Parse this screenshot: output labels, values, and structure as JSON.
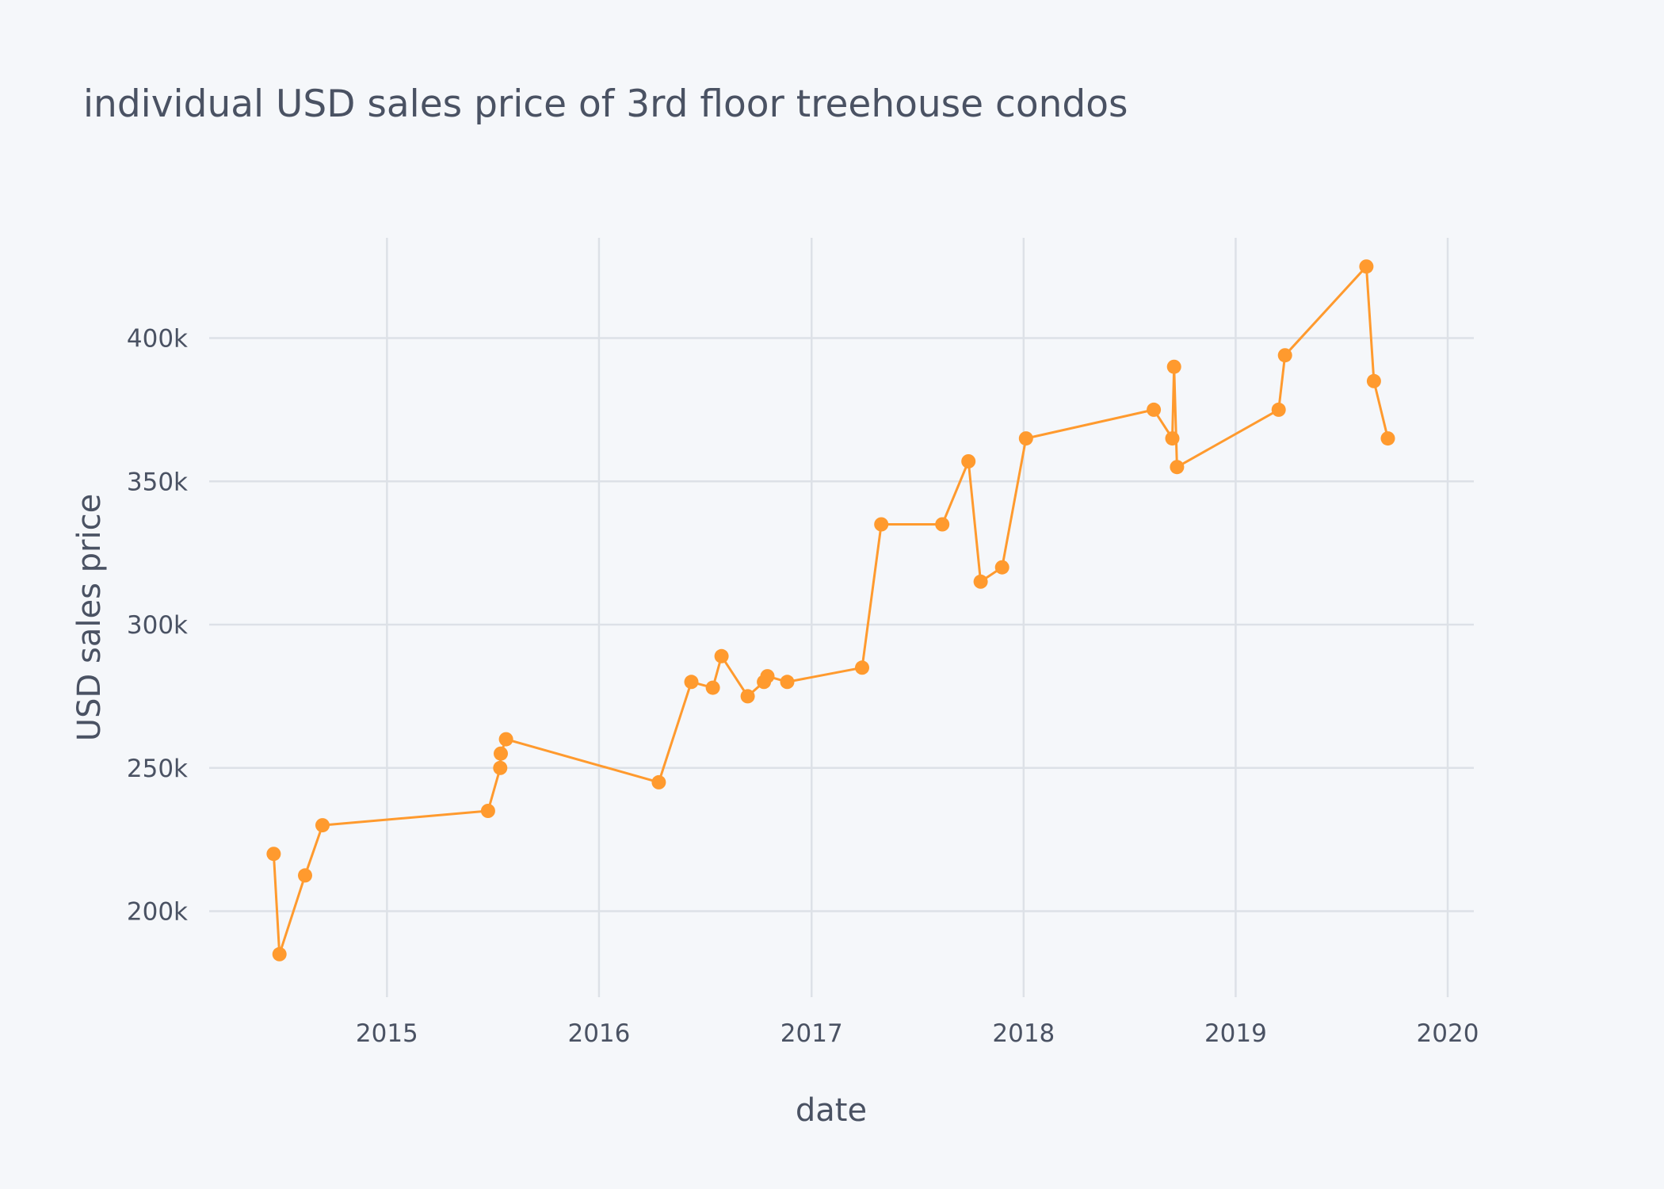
{
  "chart_data": {
    "type": "line",
    "title": "individual USD sales price of 3rd floor treehouse condos",
    "xlabel": "date",
    "ylabel": "USD sales price",
    "x_axis": {
      "type": "date",
      "range": [
        "2014-03-01",
        "2020-02-15"
      ],
      "ticks": [
        "2015",
        "2016",
        "2017",
        "2018",
        "2019",
        "2020"
      ],
      "tick_dates": [
        "2015-01-01",
        "2016-01-01",
        "2017-01-01",
        "2018-01-01",
        "2019-01-01",
        "2020-01-01"
      ]
    },
    "y_axis": {
      "range": [
        170000,
        435000
      ],
      "tick_values": [
        200000,
        250000,
        300000,
        350000,
        400000
      ],
      "tick_labels": [
        "200k",
        "250k",
        "300k",
        "350k",
        "400k"
      ]
    },
    "grid": true,
    "legend": false,
    "colors": {
      "background": "#f5f7fa",
      "series": "#ff9a2e",
      "grid": "#dde1e7",
      "text": "#4a5263"
    },
    "series": [
      {
        "x": [
          "2014-06-20",
          "2014-06-30",
          "2014-08-13",
          "2014-09-12",
          "2015-06-24",
          "2015-07-15",
          "2015-07-16",
          "2015-07-25",
          "2016-04-13",
          "2016-06-08",
          "2016-07-15",
          "2016-07-30",
          "2016-09-13",
          "2016-10-11",
          "2016-10-17",
          "2016-11-20",
          "2017-03-29",
          "2017-05-01",
          "2017-08-14",
          "2017-09-28",
          "2017-10-19",
          "2017-11-25",
          "2018-01-05",
          "2018-08-13",
          "2018-09-14",
          "2018-09-17",
          "2018-09-22",
          "2019-03-16",
          "2019-03-27",
          "2019-08-14",
          "2019-08-27",
          "2019-09-20"
        ],
        "y": [
          220000,
          185000,
          212500,
          230000,
          235000,
          250000,
          255000,
          260000,
          245000,
          280000,
          278000,
          289000,
          275000,
          280000,
          282000,
          280000,
          285000,
          335000,
          335000,
          357000,
          315000,
          320000,
          365000,
          375000,
          365000,
          390000,
          355000,
          375000,
          394000,
          425000,
          385000,
          365000
        ]
      }
    ]
  }
}
